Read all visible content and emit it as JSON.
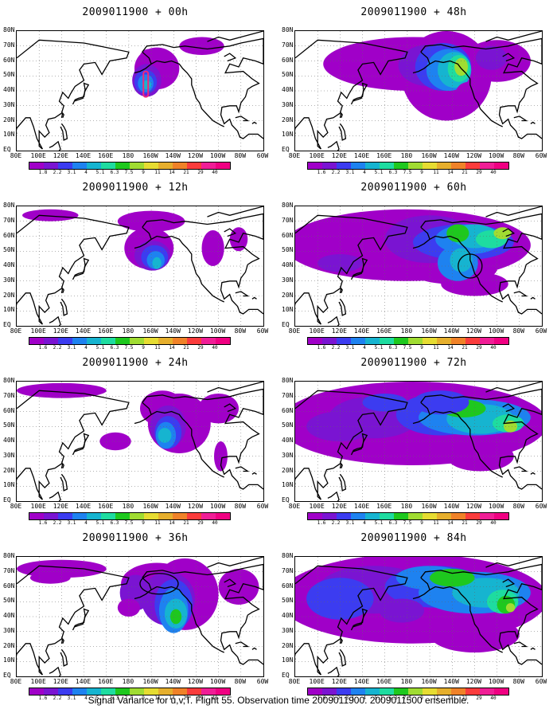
{
  "panels": [
    {
      "title": "2009011900 + 00h",
      "lead": 0
    },
    {
      "title": "2009011900 + 48h",
      "lead": 48
    },
    {
      "title": "2009011900 + 12h",
      "lead": 12
    },
    {
      "title": "2009011900 + 60h",
      "lead": 60
    },
    {
      "title": "2009011900 + 24h",
      "lead": 24
    },
    {
      "title": "2009011900 + 72h",
      "lead": 72
    },
    {
      "title": "2009011900 + 36h",
      "lead": 36
    },
    {
      "title": "2009011900 + 84h",
      "lead": 84
    }
  ],
  "lat_labels": [
    "80N",
    "70N",
    "60N",
    "50N",
    "40N",
    "30N",
    "20N",
    "10N",
    "EQ"
  ],
  "lon_labels": [
    "80E",
    "100E",
    "120E",
    "140E",
    "160E",
    "180",
    "160W",
    "140W",
    "120W",
    "100W",
    "80W",
    "60W"
  ],
  "colorbar": {
    "labels": [
      "1.6",
      "2.2",
      "3.1",
      "4",
      "5.1",
      "6.3",
      "7.5",
      "9",
      "11",
      "14",
      "21",
      "29",
      "40"
    ],
    "label_first_panel_00h": "1.8",
    "colors": [
      "#a000c8",
      "#7a14d2",
      "#3c3cf0",
      "#1e82f0",
      "#16b4d0",
      "#1edca0",
      "#1ec81e",
      "#a0dc32",
      "#e6dc32",
      "#e6af2d",
      "#f08228",
      "#fa3c3c",
      "#f01e96",
      "#f00082"
    ]
  },
  "caption": "Signal Variance for u,v,T. Flight 55. Observation time 2009011900. 2009011500 ensemble."
}
